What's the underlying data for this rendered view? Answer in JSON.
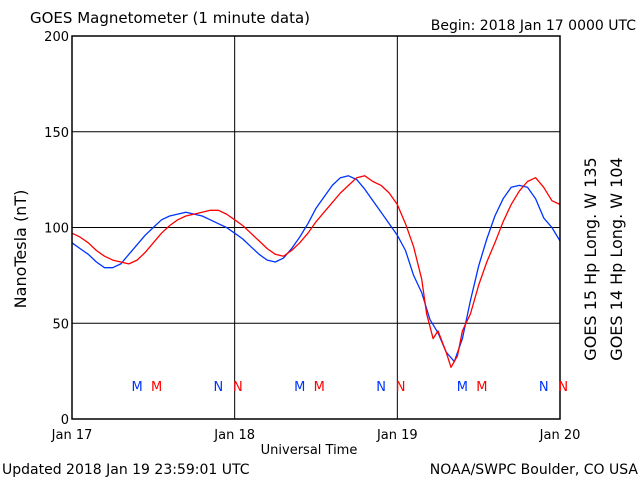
{
  "chart_data": {
    "type": "line",
    "title": "GOES Magnetometer (1 minute data)",
    "begin": "Begin:  2018 Jan 17 0000 UTC",
    "ylabel": "NanoTesla (nT)",
    "xlabel": "Universal Time",
    "ylim": [
      0,
      200
    ],
    "xlim_days": [
      0,
      3
    ],
    "y_ticks": [
      "0",
      "50",
      "100",
      "150",
      "200"
    ],
    "x_ticks": [
      "Jan 17",
      "Jan 18",
      "Jan 19",
      "Jan 20"
    ],
    "grid": true,
    "footer_left": "Updated 2018 Jan 19 23:59:01 UTC",
    "footer_right": "NOAA/SWPC Boulder, CO USA",
    "series": [
      {
        "name": "GOES 15 Hp  Long. W 135",
        "color": "#ff0000",
        "points": [
          [
            0.0,
            97
          ],
          [
            0.05,
            95
          ],
          [
            0.1,
            92
          ],
          [
            0.15,
            88
          ],
          [
            0.2,
            85
          ],
          [
            0.25,
            83
          ],
          [
            0.3,
            82
          ],
          [
            0.35,
            81
          ],
          [
            0.4,
            83
          ],
          [
            0.45,
            87
          ],
          [
            0.5,
            92
          ],
          [
            0.55,
            97
          ],
          [
            0.6,
            101
          ],
          [
            0.65,
            104
          ],
          [
            0.7,
            106
          ],
          [
            0.75,
            107
          ],
          [
            0.8,
            108
          ],
          [
            0.85,
            109
          ],
          [
            0.9,
            109
          ],
          [
            0.95,
            107
          ],
          [
            1.0,
            104
          ],
          [
            1.05,
            101
          ],
          [
            1.1,
            97
          ],
          [
            1.15,
            93
          ],
          [
            1.2,
            89
          ],
          [
            1.25,
            86
          ],
          [
            1.3,
            85
          ],
          [
            1.35,
            88
          ],
          [
            1.4,
            92
          ],
          [
            1.45,
            97
          ],
          [
            1.5,
            103
          ],
          [
            1.55,
            108
          ],
          [
            1.6,
            113
          ],
          [
            1.65,
            118
          ],
          [
            1.7,
            122
          ],
          [
            1.75,
            126
          ],
          [
            1.8,
            127
          ],
          [
            1.85,
            124
          ],
          [
            1.9,
            122
          ],
          [
            1.95,
            118
          ],
          [
            2.0,
            112
          ],
          [
            2.05,
            102
          ],
          [
            2.1,
            90
          ],
          [
            2.15,
            73
          ],
          [
            2.18,
            55
          ],
          [
            2.22,
            42
          ],
          [
            2.25,
            46
          ],
          [
            2.3,
            35
          ],
          [
            2.33,
            27
          ],
          [
            2.37,
            33
          ],
          [
            2.4,
            46
          ],
          [
            2.45,
            55
          ],
          [
            2.5,
            70
          ],
          [
            2.55,
            82
          ],
          [
            2.6,
            92
          ],
          [
            2.65,
            103
          ],
          [
            2.7,
            112
          ],
          [
            2.75,
            119
          ],
          [
            2.8,
            124
          ],
          [
            2.85,
            126
          ],
          [
            2.9,
            121
          ],
          [
            2.95,
            114
          ],
          [
            3.0,
            112
          ]
        ]
      },
      {
        "name": "GOES 14 Hp  Long. W 104",
        "color": "#0033ff",
        "points": [
          [
            0.0,
            92
          ],
          [
            0.05,
            89
          ],
          [
            0.1,
            86
          ],
          [
            0.15,
            82
          ],
          [
            0.2,
            79
          ],
          [
            0.25,
            79
          ],
          [
            0.3,
            81
          ],
          [
            0.35,
            86
          ],
          [
            0.4,
            91
          ],
          [
            0.45,
            96
          ],
          [
            0.5,
            100
          ],
          [
            0.55,
            104
          ],
          [
            0.6,
            106
          ],
          [
            0.65,
            107
          ],
          [
            0.7,
            108
          ],
          [
            0.75,
            107
          ],
          [
            0.8,
            106
          ],
          [
            0.85,
            104
          ],
          [
            0.9,
            102
          ],
          [
            0.95,
            100
          ],
          [
            1.0,
            97
          ],
          [
            1.05,
            94
          ],
          [
            1.1,
            90
          ],
          [
            1.15,
            86
          ],
          [
            1.2,
            83
          ],
          [
            1.25,
            82
          ],
          [
            1.3,
            84
          ],
          [
            1.35,
            89
          ],
          [
            1.4,
            95
          ],
          [
            1.45,
            102
          ],
          [
            1.5,
            110
          ],
          [
            1.55,
            116
          ],
          [
            1.6,
            122
          ],
          [
            1.65,
            126
          ],
          [
            1.7,
            127
          ],
          [
            1.75,
            125
          ],
          [
            1.8,
            120
          ],
          [
            1.85,
            114
          ],
          [
            1.9,
            108
          ],
          [
            1.95,
            102
          ],
          [
            2.0,
            96
          ],
          [
            2.05,
            88
          ],
          [
            2.1,
            75
          ],
          [
            2.15,
            66
          ],
          [
            2.2,
            52
          ],
          [
            2.25,
            45
          ],
          [
            2.3,
            35
          ],
          [
            2.35,
            30
          ],
          [
            2.4,
            42
          ],
          [
            2.45,
            62
          ],
          [
            2.5,
            80
          ],
          [
            2.55,
            94
          ],
          [
            2.6,
            106
          ],
          [
            2.65,
            115
          ],
          [
            2.7,
            121
          ],
          [
            2.75,
            122
          ],
          [
            2.8,
            121
          ],
          [
            2.85,
            115
          ],
          [
            2.9,
            105
          ],
          [
            2.95,
            100
          ],
          [
            3.0,
            93
          ]
        ]
      }
    ],
    "markers": [
      {
        "label": "M",
        "x": 0.4,
        "series": 1
      },
      {
        "label": "M",
        "x": 0.52,
        "series": 0
      },
      {
        "label": "N",
        "x": 0.9,
        "series": 1
      },
      {
        "label": "N",
        "x": 1.02,
        "series": 0
      },
      {
        "label": "M",
        "x": 1.4,
        "series": 1
      },
      {
        "label": "M",
        "x": 1.52,
        "series": 0
      },
      {
        "label": "N",
        "x": 1.9,
        "series": 1
      },
      {
        "label": "N",
        "x": 2.02,
        "series": 0
      },
      {
        "label": "M",
        "x": 2.4,
        "series": 1
      },
      {
        "label": "M",
        "x": 2.52,
        "series": 0
      },
      {
        "label": "N",
        "x": 2.9,
        "series": 1
      },
      {
        "label": "N",
        "x": 3.02,
        "series": 0
      }
    ]
  }
}
